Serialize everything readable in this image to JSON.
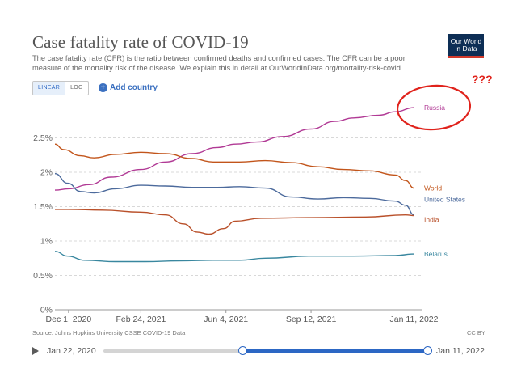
{
  "header": {
    "title": "Case fatality rate of COVID-19",
    "subtitle": "The case fatality rate (CFR) is the ratio between confirmed deaths and confirmed cases. The CFR can be a poor measure of the mortality risk of the disease. We explain this in detail at OurWorldInData.org/mortality-risk-covid",
    "logo_line1": "Our World",
    "logo_line2": "in Data"
  },
  "controls": {
    "linear_label": "LINEAR",
    "log_label": "LOG",
    "add_country_label": "Add country",
    "active_scale": "linear"
  },
  "annotation": {
    "question_marks": "???",
    "circle_color": "#e0231c",
    "circled_series": "Russia"
  },
  "footer": {
    "source": "Source: Johns Hopkins University CSSE COVID-19 Data",
    "license": "CC BY"
  },
  "timeline": {
    "start_label": "Jan 22, 2020",
    "end_label": "Jan 11, 2022",
    "selection_start_fraction": 0.43,
    "selection_end_fraction": 1.0
  },
  "chart_data": {
    "type": "line",
    "title": "Case fatality rate of COVID-19",
    "ylim": [
      0,
      3.0
    ],
    "yticks": [
      0,
      0.5,
      1,
      1.5,
      2,
      2.5
    ],
    "ytick_labels": [
      "0%",
      "0.5%",
      "1%",
      "1.5%",
      "2%",
      "2.5%"
    ],
    "xlim": [
      "2020-11-15",
      "2022-01-20"
    ],
    "xticks": [
      "2020-12-01",
      "2021-02-24",
      "2021-06-04",
      "2021-09-12",
      "2022-01-11"
    ],
    "xtick_labels": [
      "Dec 1, 2020",
      "Feb 24, 2021",
      "Jun 4, 2021",
      "Sep 12, 2021",
      "Jan 11, 2022"
    ],
    "grid": true,
    "legend": "inline labels at line ends",
    "series": [
      {
        "name": "Russia",
        "color": "#b13a95",
        "points": [
          [
            "2020-11-15",
            1.74
          ],
          [
            "2020-12-01",
            1.76
          ],
          [
            "2020-12-25",
            1.82
          ],
          [
            "2021-01-20",
            1.93
          ],
          [
            "2021-02-24",
            2.04
          ],
          [
            "2021-03-25",
            2.15
          ],
          [
            "2021-04-25",
            2.27
          ],
          [
            "2021-05-25",
            2.36
          ],
          [
            "2021-06-15",
            2.41
          ],
          [
            "2021-07-10",
            2.44
          ],
          [
            "2021-08-10",
            2.52
          ],
          [
            "2021-09-12",
            2.63
          ],
          [
            "2021-10-10",
            2.74
          ],
          [
            "2021-11-01",
            2.79
          ],
          [
            "2021-12-01",
            2.83
          ],
          [
            "2021-12-20",
            2.88
          ],
          [
            "2022-01-11",
            2.94
          ]
        ]
      },
      {
        "name": "World",
        "color": "#c2551b",
        "points": [
          [
            "2020-11-15",
            2.41
          ],
          [
            "2020-11-25",
            2.33
          ],
          [
            "2020-12-15",
            2.24
          ],
          [
            "2020-12-31",
            2.21
          ],
          [
            "2021-01-25",
            2.26
          ],
          [
            "2021-02-24",
            2.29
          ],
          [
            "2021-03-25",
            2.27
          ],
          [
            "2021-04-25",
            2.2
          ],
          [
            "2021-05-20",
            2.15
          ],
          [
            "2021-06-20",
            2.15
          ],
          [
            "2021-07-20",
            2.17
          ],
          [
            "2021-08-20",
            2.14
          ],
          [
            "2021-09-20",
            2.08
          ],
          [
            "2021-10-20",
            2.04
          ],
          [
            "2021-11-20",
            2.02
          ],
          [
            "2021-12-20",
            1.96
          ],
          [
            "2022-01-01",
            1.88
          ],
          [
            "2022-01-11",
            1.77
          ]
        ]
      },
      {
        "name": "United States",
        "color": "#4c6a9c",
        "points": [
          [
            "2020-11-15",
            1.98
          ],
          [
            "2020-11-30",
            1.84
          ],
          [
            "2020-12-15",
            1.72
          ],
          [
            "2020-12-31",
            1.7
          ],
          [
            "2021-01-25",
            1.76
          ],
          [
            "2021-02-24",
            1.81
          ],
          [
            "2021-03-25",
            1.8
          ],
          [
            "2021-04-25",
            1.78
          ],
          [
            "2021-05-25",
            1.78
          ],
          [
            "2021-06-20",
            1.79
          ],
          [
            "2021-07-20",
            1.77
          ],
          [
            "2021-08-20",
            1.64
          ],
          [
            "2021-09-20",
            1.61
          ],
          [
            "2021-10-20",
            1.63
          ],
          [
            "2021-11-20",
            1.62
          ],
          [
            "2021-12-20",
            1.58
          ],
          [
            "2022-01-01",
            1.52
          ],
          [
            "2022-01-11",
            1.38
          ]
        ]
      },
      {
        "name": "India",
        "color": "#b9502a",
        "points": [
          [
            "2020-11-15",
            1.46
          ],
          [
            "2020-12-01",
            1.46
          ],
          [
            "2021-01-10",
            1.45
          ],
          [
            "2021-02-24",
            1.42
          ],
          [
            "2021-03-25",
            1.38
          ],
          [
            "2021-04-15",
            1.25
          ],
          [
            "2021-05-01",
            1.13
          ],
          [
            "2021-05-15",
            1.1
          ],
          [
            "2021-06-01",
            1.18
          ],
          [
            "2021-06-15",
            1.29
          ],
          [
            "2021-07-15",
            1.33
          ],
          [
            "2021-09-12",
            1.34
          ],
          [
            "2021-11-15",
            1.35
          ],
          [
            "2022-01-01",
            1.38
          ],
          [
            "2022-01-11",
            1.37
          ]
        ]
      },
      {
        "name": "Belarus",
        "color": "#39879f",
        "points": [
          [
            "2020-11-15",
            0.85
          ],
          [
            "2020-11-30",
            0.78
          ],
          [
            "2020-12-20",
            0.72
          ],
          [
            "2021-01-25",
            0.7
          ],
          [
            "2021-03-01",
            0.7
          ],
          [
            "2021-04-10",
            0.71
          ],
          [
            "2021-05-20",
            0.72
          ],
          [
            "2021-06-20",
            0.72
          ],
          [
            "2021-07-20",
            0.75
          ],
          [
            "2021-09-12",
            0.78
          ],
          [
            "2021-11-01",
            0.78
          ],
          [
            "2021-12-20",
            0.79
          ],
          [
            "2022-01-11",
            0.81
          ]
        ]
      }
    ]
  }
}
